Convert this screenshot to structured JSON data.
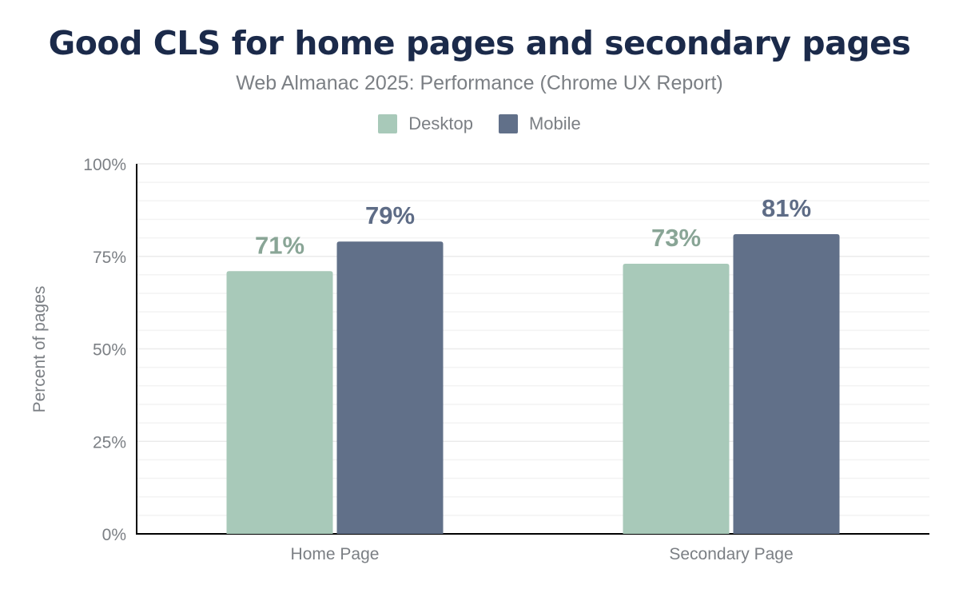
{
  "chart_data": {
    "type": "bar",
    "title": "Good CLS for home pages and secondary pages",
    "subtitle": "Web Almanac 2025: Performance (Chrome UX Report)",
    "xlabel": "",
    "ylabel": "Percent of pages",
    "ylim": [
      0,
      100
    ],
    "yticks": [
      "0%",
      "25%",
      "50%",
      "75%",
      "100%"
    ],
    "grid": true,
    "legend_position": "top",
    "categories": [
      "Home Page",
      "Secondary Page"
    ],
    "series": [
      {
        "name": "Desktop",
        "values": [
          71,
          73
        ],
        "labels": [
          "71%",
          "73%"
        ],
        "color": "#a8c9b9",
        "label_color": "#89a596"
      },
      {
        "name": "Mobile",
        "values": [
          79,
          81
        ],
        "labels": [
          "79%",
          "81%"
        ],
        "color": "#617089",
        "label_color": "#5e6c86"
      }
    ]
  }
}
